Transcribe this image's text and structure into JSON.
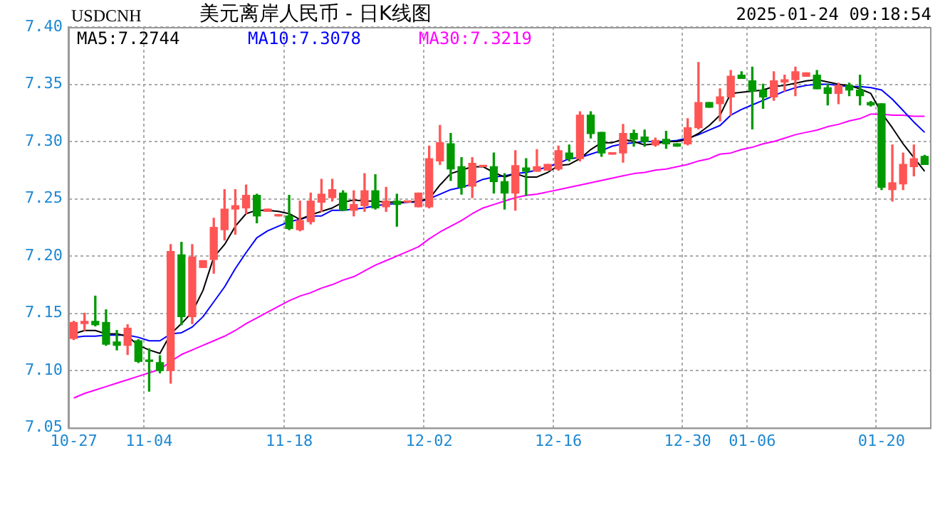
{
  "chart_data": {
    "type": "candlestick",
    "title": "美元离岸人民币 - 日K线图",
    "subtitle": "2025-01-24 09:18:54",
    "ylabel": "USDCNH",
    "categories": [
      "10-27",
      null,
      null,
      null,
      null,
      null,
      null,
      "11-04",
      null,
      null,
      null,
      null,
      null,
      null,
      null,
      null,
      null,
      null,
      null,
      null,
      "11-18",
      null,
      null,
      null,
      null,
      null,
      null,
      null,
      null,
      null,
      null,
      null,
      null,
      "12-02",
      null,
      null,
      null,
      null,
      null,
      null,
      null,
      null,
      null,
      null,
      null,
      "12-16",
      null,
      null,
      null,
      null,
      null,
      null,
      null,
      null,
      null,
      null,
      null,
      "12-30",
      null,
      null,
      null,
      null,
      null,
      "01-06",
      null,
      null,
      null,
      null,
      null,
      null,
      null,
      null,
      null,
      null,
      null,
      "01-20",
      null,
      null,
      null,
      null
    ],
    "ohlc": [
      [
        7.128,
        7.143,
        7.127,
        7.142
      ],
      [
        7.141,
        7.15,
        7.135,
        7.143
      ],
      [
        7.143,
        7.165,
        7.139,
        7.14
      ],
      [
        7.142,
        7.153,
        7.122,
        7.123
      ],
      [
        7.125,
        7.135,
        7.118,
        7.122
      ],
      [
        7.122,
        7.14,
        7.114,
        7.137
      ],
      [
        7.126,
        7.127,
        7.107,
        7.108
      ],
      [
        7.109,
        7.119,
        7.082,
        7.108
      ],
      [
        7.107,
        7.113,
        7.098,
        7.1
      ],
      [
        7.1,
        7.21,
        7.089,
        7.204
      ],
      [
        7.201,
        7.212,
        7.14,
        7.147
      ],
      [
        7.147,
        7.21,
        7.141,
        7.199
      ],
      [
        7.19,
        7.196,
        7.19,
        7.196
      ],
      [
        7.197,
        7.233,
        7.185,
        7.225
      ],
      [
        7.223,
        7.258,
        7.214,
        7.241
      ],
      [
        7.241,
        7.258,
        7.219,
        7.244
      ],
      [
        7.242,
        7.262,
        7.237,
        7.253
      ],
      [
        7.253,
        7.254,
        7.229,
        7.235
      ],
      [
        7.239,
        7.241,
        7.239,
        7.241
      ],
      [
        7.235,
        7.236,
        7.235,
        7.236
      ],
      [
        7.235,
        7.253,
        7.223,
        7.224
      ],
      [
        7.223,
        7.248,
        7.222,
        7.231
      ],
      [
        7.23,
        7.255,
        7.228,
        7.248
      ],
      [
        7.247,
        7.267,
        7.239,
        7.254
      ],
      [
        7.251,
        7.267,
        7.248,
        7.258
      ],
      [
        7.255,
        7.257,
        7.24,
        7.24
      ],
      [
        7.24,
        7.257,
        7.235,
        7.245
      ],
      [
        7.244,
        7.272,
        7.239,
        7.257
      ],
      [
        7.257,
        7.271,
        7.241,
        7.242
      ],
      [
        7.243,
        7.26,
        7.239,
        7.248
      ],
      [
        7.248,
        7.254,
        7.226,
        7.245
      ],
      [
        7.247,
        7.248,
        7.247,
        7.248
      ],
      [
        7.243,
        7.255,
        7.243,
        7.255
      ],
      [
        7.243,
        7.296,
        7.242,
        7.285
      ],
      [
        7.283,
        7.314,
        7.28,
        7.299
      ],
      [
        7.298,
        7.307,
        7.266,
        7.276
      ],
      [
        7.278,
        7.286,
        7.254,
        7.26
      ],
      [
        7.261,
        7.286,
        7.251,
        7.281
      ],
      [
        7.278,
        7.279,
        7.278,
        7.279
      ],
      [
        7.278,
        7.29,
        7.255,
        7.265
      ],
      [
        7.265,
        7.272,
        7.241,
        7.255
      ],
      [
        7.255,
        7.292,
        7.24,
        7.279
      ],
      [
        7.277,
        7.285,
        7.253,
        7.274
      ],
      [
        7.274,
        7.293,
        7.274,
        7.278
      ],
      [
        7.275,
        7.28,
        7.275,
        7.28
      ],
      [
        7.276,
        7.296,
        7.275,
        7.292
      ],
      [
        7.29,
        7.297,
        7.283,
        7.285
      ],
      [
        7.285,
        7.326,
        7.283,
        7.323
      ],
      [
        7.323,
        7.326,
        7.303,
        7.307
      ],
      [
        7.308,
        7.308,
        7.287,
        7.29
      ],
      [
        7.289,
        7.29,
        7.289,
        7.29
      ],
      [
        7.29,
        7.315,
        7.282,
        7.307
      ],
      [
        7.307,
        7.31,
        7.296,
        7.302
      ],
      [
        7.304,
        7.31,
        7.296,
        7.3
      ],
      [
        7.297,
        7.303,
        7.296,
        7.301
      ],
      [
        7.302,
        7.309,
        7.294,
        7.298
      ],
      [
        7.298,
        7.298,
        7.296,
        7.296
      ],
      [
        7.298,
        7.32,
        7.297,
        7.312
      ],
      [
        7.312,
        7.369,
        7.311,
        7.334
      ],
      [
        7.334,
        7.334,
        7.33,
        7.33
      ],
      [
        7.333,
        7.346,
        7.318,
        7.339
      ],
      [
        7.339,
        7.362,
        7.323,
        7.357
      ],
      [
        7.358,
        7.361,
        7.355,
        7.355
      ],
      [
        7.353,
        7.365,
        7.311,
        7.344
      ],
      [
        7.345,
        7.35,
        7.329,
        7.339
      ],
      [
        7.339,
        7.361,
        7.336,
        7.353
      ],
      [
        7.352,
        7.358,
        7.344,
        7.354
      ],
      [
        7.354,
        7.365,
        7.34,
        7.361
      ],
      [
        7.357,
        7.36,
        7.357,
        7.36
      ],
      [
        7.358,
        7.362,
        7.346,
        7.346
      ],
      [
        7.347,
        7.35,
        7.332,
        7.342
      ],
      [
        7.342,
        7.351,
        7.333,
        7.349
      ],
      [
        7.349,
        7.351,
        7.34,
        7.345
      ],
      [
        7.345,
        7.358,
        7.332,
        7.34
      ],
      [
        7.334,
        7.335,
        7.331,
        7.332
      ],
      [
        7.333,
        7.333,
        7.258,
        7.26
      ],
      [
        7.258,
        7.297,
        7.248,
        7.264
      ],
      [
        7.263,
        7.29,
        7.258,
        7.28
      ],
      [
        7.278,
        7.297,
        7.27,
        7.285
      ],
      [
        7.287,
        7.288,
        7.28,
        7.28
      ]
    ],
    "colors": [
      "#ff5555",
      "#ff5555",
      "#009900",
      "#009900",
      "#009900",
      "#ff5555",
      "#009900",
      "#009900",
      "#009900",
      "#ff5555",
      "#009900",
      "#ff5555",
      "#ff5555",
      "#ff5555",
      "#ff5555",
      "#ff5555",
      "#ff5555",
      "#009900",
      "#ff5555",
      "#ff5555",
      "#009900",
      "#ff5555",
      "#ff5555",
      "#ff5555",
      "#ff5555",
      "#009900",
      "#ff5555",
      "#ff5555",
      "#009900",
      "#ff5555",
      "#009900",
      "#ff5555",
      "#ff5555",
      "#ff5555",
      "#ff5555",
      "#009900",
      "#009900",
      "#ff5555",
      "#ff5555",
      "#009900",
      "#009900",
      "#ff5555",
      "#009900",
      "#ff5555",
      "#ff5555",
      "#ff5555",
      "#009900",
      "#ff5555",
      "#009900",
      "#009900",
      "#ff5555",
      "#ff5555",
      "#009900",
      "#009900",
      "#ff5555",
      "#009900",
      "#009900",
      "#ff5555",
      "#ff5555",
      "#009900",
      "#ff5555",
      "#ff5555",
      "#009900",
      "#009900",
      "#009900",
      "#ff5555",
      "#ff5555",
      "#ff5555",
      "#ff5555",
      "#009900",
      "#009900",
      "#ff5555",
      "#009900",
      "#009900",
      "#009900",
      "#009900",
      "#ff5555",
      "#ff5555",
      "#ff5555",
      "#009900"
    ],
    "series": [
      {
        "type": "line",
        "name": "MA5:7.2744",
        "color": "#000000",
        "values": [
          7.132,
          7.135,
          7.135,
          7.132,
          7.132,
          7.13,
          7.122,
          7.118,
          7.115,
          7.132,
          7.141,
          7.151,
          7.17,
          7.199,
          7.21,
          7.226,
          7.237,
          7.24,
          7.24,
          7.239,
          7.237,
          7.232,
          7.236,
          7.239,
          7.242,
          7.247,
          7.249,
          7.248,
          7.248,
          7.247,
          7.247,
          7.247,
          7.248,
          7.25,
          7.262,
          7.272,
          7.275,
          7.278,
          7.278,
          7.273,
          7.269,
          7.272,
          7.269,
          7.269,
          7.273,
          7.279,
          7.28,
          7.285,
          7.293,
          7.299,
          7.299,
          7.302,
          7.3,
          7.297,
          7.298,
          7.3,
          7.3,
          7.302,
          7.307,
          7.314,
          7.323,
          7.342,
          7.343,
          7.344,
          7.345,
          7.348,
          7.349,
          7.351,
          7.353,
          7.354,
          7.352,
          7.35,
          7.349,
          7.346,
          7.342,
          7.325,
          7.312,
          7.298,
          7.286,
          7.274
        ]
      },
      {
        "type": "line",
        "name": "MA10:7.3078",
        "color": "#0000ff",
        "values": [
          7.129,
          7.13,
          7.13,
          7.131,
          7.131,
          7.131,
          7.129,
          7.126,
          7.126,
          7.132,
          7.133,
          7.138,
          7.147,
          7.16,
          7.173,
          7.189,
          7.203,
          7.216,
          7.222,
          7.226,
          7.23,
          7.232,
          7.235,
          7.235,
          7.24,
          7.24,
          7.241,
          7.242,
          7.244,
          7.245,
          7.246,
          7.247,
          7.247,
          7.25,
          7.254,
          7.258,
          7.26,
          7.263,
          7.267,
          7.269,
          7.27,
          7.272,
          7.273,
          7.275,
          7.278,
          7.281,
          7.285,
          7.286,
          7.289,
          7.292,
          7.296,
          7.298,
          7.299,
          7.3,
          7.3,
          7.3,
          7.301,
          7.303,
          7.306,
          7.31,
          7.314,
          7.323,
          7.328,
          7.332,
          7.336,
          7.34,
          7.344,
          7.347,
          7.349,
          7.35,
          7.35,
          7.349,
          7.348,
          7.348,
          7.347,
          7.345,
          7.337,
          7.327,
          7.317,
          7.308
        ]
      },
      {
        "type": "line",
        "name": "MA30:7.3219",
        "color": "#ff00ff",
        "values": [
          7.076,
          7.08,
          7.083,
          7.086,
          7.089,
          7.092,
          7.095,
          7.098,
          7.101,
          7.108,
          7.114,
          7.118,
          7.122,
          7.126,
          7.13,
          7.135,
          7.141,
          7.146,
          7.151,
          7.156,
          7.161,
          7.165,
          7.168,
          7.172,
          7.175,
          7.179,
          7.182,
          7.187,
          7.192,
          7.196,
          7.2,
          7.204,
          7.208,
          7.215,
          7.221,
          7.226,
          7.231,
          7.237,
          7.242,
          7.245,
          7.248,
          7.251,
          7.253,
          7.254,
          7.256,
          7.258,
          7.26,
          7.262,
          7.264,
          7.266,
          7.268,
          7.27,
          7.272,
          7.273,
          7.275,
          7.276,
          7.278,
          7.28,
          7.283,
          7.285,
          7.289,
          7.29,
          7.293,
          7.295,
          7.298,
          7.3,
          7.303,
          7.306,
          7.308,
          7.31,
          7.313,
          7.315,
          7.318,
          7.32,
          7.324,
          7.324,
          7.323,
          7.323,
          7.322,
          7.322
        ]
      }
    ],
    "ylim": [
      7.05,
      7.4
    ],
    "yticks": [
      7.05,
      {
        "value": 7.1,
        "label": "7.10"
      },
      7.15,
      {
        "value": 7.2,
        "label": "7.20"
      },
      7.25,
      {
        "value": 7.3,
        "label": "7.30"
      },
      7.35,
      {
        "value": 7.4,
        "label": "7.40"
      }
    ],
    "grid": true,
    "legend": "top left"
  }
}
